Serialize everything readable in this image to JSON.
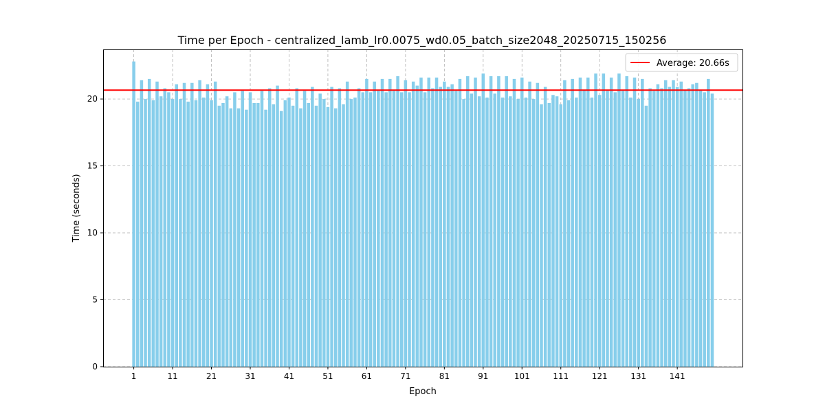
{
  "chart_data": {
    "type": "bar",
    "title": "Time per Epoch - centralized_lamb_lr0.0075_wd0.05_batch_size2048_20250715_150256",
    "xlabel": "Epoch",
    "ylabel": "Time (seconds)",
    "ylim": [
      0,
      23.7
    ],
    "xlim": [
      -6.9,
      157.8
    ],
    "yticks": [
      0,
      5,
      10,
      15,
      20
    ],
    "xticks": [
      1,
      11,
      21,
      31,
      41,
      51,
      61,
      71,
      81,
      91,
      101,
      111,
      121,
      131,
      141
    ],
    "grid": true,
    "legend_position": "top-right",
    "bar_color": "#87CEEB",
    "average_line": {
      "label": "Average: 20.66s",
      "value": 20.66,
      "color": "#ff0000"
    },
    "epochs_start": 1,
    "values": [
      22.8,
      19.8,
      21.4,
      20.0,
      21.5,
      19.9,
      21.3,
      20.2,
      20.8,
      20.5,
      20.0,
      21.1,
      20.0,
      21.2,
      19.8,
      21.2,
      19.9,
      21.4,
      20.1,
      21.1,
      19.9,
      21.3,
      19.5,
      19.7,
      20.2,
      19.3,
      20.5,
      19.3,
      20.6,
      19.2,
      20.5,
      19.7,
      19.7,
      20.6,
      19.2,
      20.8,
      19.6,
      21.0,
      19.1,
      19.9,
      20.1,
      19.5,
      20.8,
      19.3,
      20.6,
      19.7,
      20.9,
      19.5,
      20.4,
      20.0,
      19.4,
      20.9,
      19.3,
      20.8,
      19.6,
      21.3,
      20.0,
      20.1,
      20.8,
      20.5,
      21.5,
      20.5,
      21.3,
      20.6,
      21.5,
      20.5,
      21.5,
      20.6,
      21.7,
      20.5,
      21.4,
      20.5,
      21.3,
      21.0,
      21.6,
      20.5,
      21.6,
      20.8,
      21.6,
      20.9,
      21.3,
      20.9,
      21.1,
      20.6,
      21.5,
      20.0,
      21.7,
      20.4,
      21.6,
      20.2,
      21.9,
      20.1,
      21.7,
      20.4,
      21.7,
      20.1,
      21.7,
      20.2,
      21.5,
      20.0,
      21.6,
      20.1,
      21.3,
      20.0,
      21.2,
      19.6,
      20.9,
      19.7,
      20.3,
      20.2,
      19.6,
      21.4,
      19.9,
      21.5,
      20.1,
      21.6,
      20.7,
      21.6,
      20.1,
      21.9,
      20.3,
      21.9,
      20.6,
      21.6,
      20.5,
      21.9,
      20.6,
      21.7,
      20.1,
      21.6,
      20.0,
      21.5,
      19.5,
      20.8,
      20.6,
      21.1,
      20.8,
      21.4,
      20.9,
      21.4,
      20.9,
      21.3,
      20.7,
      20.8,
      21.1,
      21.2,
      20.7,
      20.5,
      21.5,
      20.4
    ]
  }
}
